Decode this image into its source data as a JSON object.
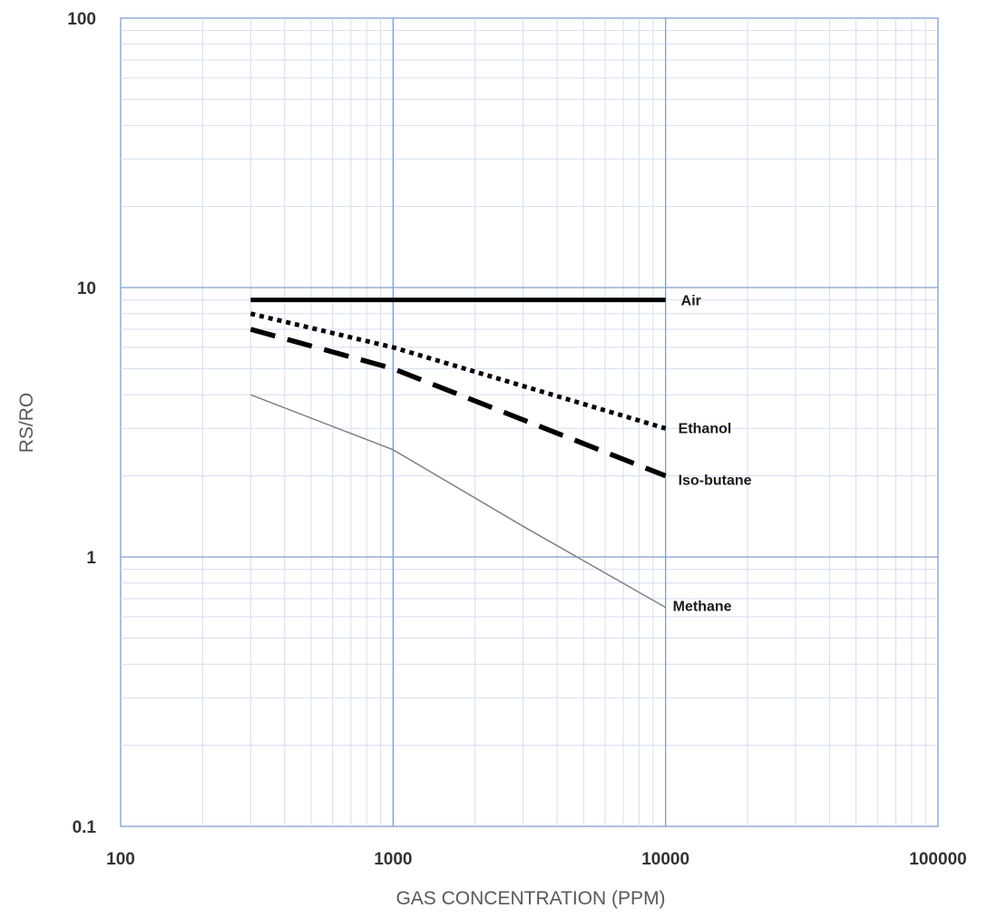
{
  "chart_data": {
    "type": "line",
    "title": "",
    "xlabel": "GAS CONCENTRATION (PPM)",
    "ylabel": "RS/RO",
    "x_scale": "log",
    "y_scale": "log",
    "xlim": [
      100,
      100000
    ],
    "ylim": [
      0.1,
      100
    ],
    "x_ticks": [
      "100",
      "1000",
      "10000",
      "100000"
    ],
    "y_ticks": [
      "100",
      "10",
      "1",
      "0.1"
    ],
    "grid": true,
    "legend": "inline labels at line ends",
    "series": [
      {
        "name": "Air",
        "style": "solid-thick",
        "color": "#000000",
        "x": [
          300,
          10000
        ],
        "y": [
          9,
          9
        ]
      },
      {
        "name": "Ethanol",
        "style": "dotted",
        "color": "#000000",
        "x": [
          300,
          1000,
          10000
        ],
        "y": [
          8,
          6,
          3
        ]
      },
      {
        "name": "Iso-butane",
        "style": "dashed",
        "color": "#000000",
        "x": [
          300,
          1000,
          10000
        ],
        "y": [
          7,
          5,
          2
        ]
      },
      {
        "name": "Methane",
        "style": "solid-thin",
        "color": "#808080",
        "x": [
          300,
          1000,
          3000,
          10000
        ],
        "y": [
          4,
          2.5,
          1.3,
          0.65
        ]
      }
    ]
  }
}
